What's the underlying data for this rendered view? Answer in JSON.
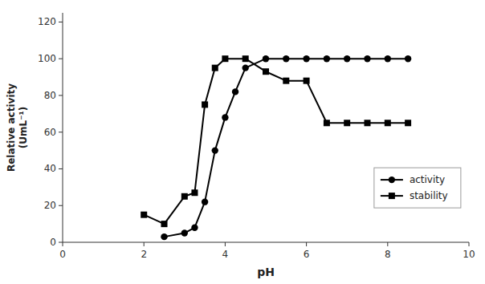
{
  "chart_data": {
    "type": "line",
    "xlabel": "pH",
    "ylabel": "Relative activity\n(UmL⁻¹)",
    "series": [
      {
        "name": "activity",
        "color": "#000000",
        "marker": "circle",
        "x": [
          2.5,
          3.0,
          3.25,
          3.5,
          3.75,
          4.0,
          4.25,
          4.5,
          5.0,
          5.5,
          6.0,
          6.5,
          7.0,
          7.5,
          8.0,
          8.5
        ],
        "values": [
          3,
          5,
          8,
          22,
          50,
          68,
          82,
          95,
          100,
          100,
          100,
          100,
          100,
          100,
          100,
          100
        ]
      },
      {
        "name": "stability",
        "color": "#000000",
        "marker": "square",
        "x": [
          2.0,
          2.5,
          3.0,
          3.25,
          3.5,
          3.75,
          4.0,
          4.5,
          5.0,
          5.5,
          6.0,
          6.5,
          7.0,
          7.5,
          8.0,
          8.5
        ],
        "values": [
          15,
          10,
          25,
          27,
          75,
          95,
          100,
          100,
          93,
          88,
          88,
          65,
          65,
          65,
          65,
          65
        ]
      }
    ],
    "xlim": [
      0,
      10
    ],
    "ylim": [
      0,
      125
    ],
    "xticks": [
      0,
      2,
      4,
      6,
      8,
      10
    ],
    "yticks": [
      0,
      20,
      40,
      60,
      80,
      100,
      120
    ],
    "grid": false,
    "legend": "lower right"
  }
}
